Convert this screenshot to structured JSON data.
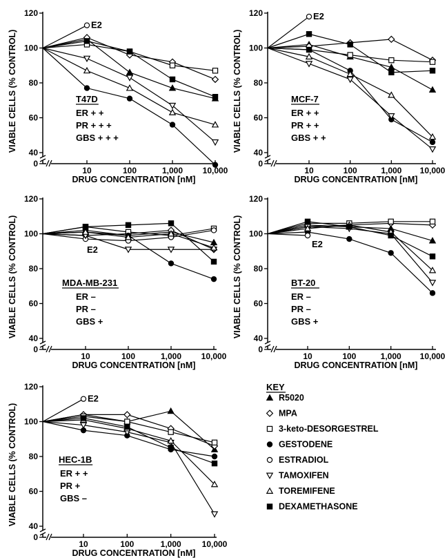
{
  "chart_data": [
    {
      "type": "line",
      "panel": "T47D",
      "cell_line": "T47D",
      "receptors": [
        "ER + +",
        "PR + + +",
        "GBS + + +"
      ],
      "xlabel": "DRUG CONCENTRATION [nM]",
      "ylabel": "VIABLE CELLS (% CONTROL)",
      "x_scale": "log",
      "x_ticks": [
        "10",
        "100",
        "1,000",
        "10,000"
      ],
      "y_ticks": [
        "0",
        "40",
        "60",
        "80",
        "100",
        "120"
      ],
      "ylim": [
        0,
        120
      ],
      "y_axis_break": [
        0,
        40
      ],
      "annotations": [
        {
          "text": "E2",
          "series": "ESTRADIOL"
        }
      ],
      "series": [
        {
          "name": "R5020",
          "marker": "filled-triangle",
          "x": [
            1,
            10,
            100,
            1000,
            10000
          ],
          "y": [
            100,
            105,
            86,
            77,
            71
          ]
        },
        {
          "name": "MPA",
          "marker": "open-diamond",
          "x": [
            1,
            10,
            100,
            1000,
            10000
          ],
          "y": [
            100,
            106,
            96,
            92,
            82
          ]
        },
        {
          "name": "3-keto-DESORGESTREL",
          "marker": "open-square",
          "x": [
            1,
            10,
            100,
            1000,
            10000
          ],
          "y": [
            100,
            102,
            98,
            90,
            87
          ]
        },
        {
          "name": "GESTODENE",
          "marker": "filled-circle",
          "x": [
            1,
            10,
            100,
            1000,
            10000
          ],
          "y": [
            100,
            77,
            71,
            56,
            33
          ]
        },
        {
          "name": "ESTRADIOL",
          "marker": "open-circle",
          "x": [
            1,
            10
          ],
          "y": [
            100,
            113
          ]
        },
        {
          "name": "TAMOXIFEN",
          "marker": "open-inverted-triangle",
          "x": [
            1,
            10,
            100,
            1000,
            10000
          ],
          "y": [
            100,
            94,
            83,
            67,
            46
          ]
        },
        {
          "name": "TOREMIFENE",
          "marker": "open-triangle",
          "x": [
            1,
            10,
            100,
            1000,
            10000
          ],
          "y": [
            100,
            87,
            77,
            63,
            56
          ]
        },
        {
          "name": "DEXAMETHASONE",
          "marker": "filled-square",
          "x": [
            1,
            10,
            100,
            1000,
            10000
          ],
          "y": [
            100,
            104,
            98,
            82,
            72
          ]
        }
      ]
    },
    {
      "type": "line",
      "panel": "MCF-7",
      "cell_line": "MCF-7",
      "receptors": [
        "ER + +",
        "PR + +",
        "GBS + +"
      ],
      "xlabel": "DRUG CONCENTRATION [nM]",
      "ylabel": "VIABLE CELLS (% CONTROL)",
      "x_scale": "log",
      "x_ticks": [
        "10",
        "100",
        "1,000",
        "10,000"
      ],
      "y_ticks": [
        "0",
        "40",
        "60",
        "80",
        "100",
        "120"
      ],
      "ylim": [
        0,
        120
      ],
      "y_axis_break": [
        0,
        40
      ],
      "annotations": [
        {
          "text": "E2",
          "series": "ESTRADIOL"
        }
      ],
      "series": [
        {
          "name": "R5020",
          "marker": "filled-triangle",
          "x": [
            1,
            10,
            100,
            1000,
            10000
          ],
          "y": [
            100,
            102,
            95,
            89,
            76
          ]
        },
        {
          "name": "MPA",
          "marker": "open-diamond",
          "x": [
            1,
            10,
            100,
            1000,
            10000
          ],
          "y": [
            100,
            101,
            103,
            105,
            93
          ]
        },
        {
          "name": "3-keto-DESORGESTREL",
          "marker": "open-square",
          "x": [
            1,
            10,
            100,
            1000,
            10000
          ],
          "y": [
            100,
            99,
            96,
            93,
            92
          ]
        },
        {
          "name": "GESTODENE",
          "marker": "filled-circle",
          "x": [
            1,
            10,
            100,
            1000,
            10000
          ],
          "y": [
            100,
            99,
            87,
            59,
            46
          ]
        },
        {
          "name": "ESTRADIOL",
          "marker": "open-circle",
          "x": [
            1,
            10
          ],
          "y": [
            100,
            118
          ]
        },
        {
          "name": "TAMOXIFEN",
          "marker": "open-inverted-triangle",
          "x": [
            1,
            10,
            100,
            1000,
            10000
          ],
          "y": [
            100,
            91,
            82,
            61,
            42
          ]
        },
        {
          "name": "TOREMIFENE",
          "marker": "open-triangle",
          "x": [
            1,
            10,
            100,
            1000,
            10000
          ],
          "y": [
            100,
            95,
            85,
            73,
            49
          ]
        },
        {
          "name": "DEXAMETHASONE",
          "marker": "filled-square",
          "x": [
            1,
            10,
            100,
            1000,
            10000
          ],
          "y": [
            100,
            108,
            102,
            86,
            87
          ]
        }
      ]
    },
    {
      "type": "line",
      "panel": "MDA-MB-231",
      "cell_line": "MDA-MB-231",
      "receptors": [
        "ER –",
        "PR –",
        "GBS +"
      ],
      "xlabel": "DRUG CONCENTRATION [nM]",
      "ylabel": "VIABLE CELLS (% CONTROL)",
      "x_scale": "log",
      "x_ticks": [
        "10",
        "100",
        "1,000",
        "10,000"
      ],
      "y_ticks": [
        "0",
        "40",
        "60",
        "80",
        "100",
        "120"
      ],
      "ylim": [
        0,
        120
      ],
      "y_axis_break": [
        0,
        40
      ],
      "annotations": [
        {
          "text": "E2",
          "series": "ESTRADIOL"
        }
      ],
      "series": [
        {
          "name": "R5020",
          "marker": "filled-triangle",
          "x": [
            1,
            10,
            100,
            1000,
            10000
          ],
          "y": [
            100,
            101,
            99,
            101,
            95
          ]
        },
        {
          "name": "MPA",
          "marker": "open-diamond",
          "x": [
            1,
            10,
            100,
            1000,
            10000
          ],
          "y": [
            100,
            99,
            100,
            102,
            91
          ]
        },
        {
          "name": "3-keto-DESORGESTREL",
          "marker": "open-square",
          "x": [
            1,
            10,
            100,
            1000,
            10000
          ],
          "y": [
            100,
            104,
            101,
            99,
            103
          ]
        },
        {
          "name": "GESTODENE",
          "marker": "filled-circle",
          "x": [
            1,
            10,
            100,
            1000,
            10000
          ],
          "y": [
            100,
            102,
            99,
            83,
            74
          ]
        },
        {
          "name": "ESTRADIOL",
          "marker": "open-circle",
          "x": [
            1,
            10,
            100,
            1000,
            10000
          ],
          "y": [
            100,
            97,
            96,
            98,
            102
          ]
        },
        {
          "name": "TAMOXIFEN",
          "marker": "open-inverted-triangle",
          "x": [
            1,
            10,
            100,
            1000,
            10000
          ],
          "y": [
            100,
            99,
            91,
            91,
            91
          ]
        },
        {
          "name": "TOREMIFENE",
          "marker": "open-triangle",
          "x": [
            1,
            10,
            100,
            1000,
            10000
          ],
          "y": [
            100,
            101,
            98,
            100,
            92
          ]
        },
        {
          "name": "DEXAMETHASONE",
          "marker": "filled-square",
          "x": [
            1,
            10,
            100,
            1000,
            10000
          ],
          "y": [
            100,
            104,
            105,
            106,
            84
          ]
        }
      ]
    },
    {
      "type": "line",
      "panel": "BT-20",
      "cell_line": "BT-20",
      "receptors": [
        "ER –",
        "PR –",
        "GBS +"
      ],
      "xlabel": "DRUG CONCENTRATION [nM]",
      "ylabel": "VIABLE CELLS (% CONTROL)",
      "x_scale": "log",
      "x_ticks": [
        "10",
        "100",
        "1,000",
        "10,000"
      ],
      "y_ticks": [
        "0",
        "40",
        "60",
        "80",
        "100",
        "120"
      ],
      "ylim": [
        0,
        120
      ],
      "y_axis_break": [
        0,
        40
      ],
      "annotations": [
        {
          "text": "E2",
          "series": "ESTRADIOL"
        }
      ],
      "series": [
        {
          "name": "R5020",
          "marker": "filled-triangle",
          "x": [
            1,
            10,
            100,
            1000,
            10000
          ],
          "y": [
            100,
            105,
            104,
            103,
            96
          ]
        },
        {
          "name": "MPA",
          "marker": "open-diamond",
          "x": [
            1,
            10,
            100,
            1000,
            10000
          ],
          "y": [
            100,
            104,
            105,
            106,
            105
          ]
        },
        {
          "name": "3-keto-DESORGESTREL",
          "marker": "open-square",
          "x": [
            1,
            10,
            100,
            1000,
            10000
          ],
          "y": [
            100,
            106,
            106,
            107,
            107
          ]
        },
        {
          "name": "GESTODENE",
          "marker": "filled-circle",
          "x": [
            1,
            10,
            100,
            1000,
            10000
          ],
          "y": [
            100,
            101,
            97,
            89,
            66
          ]
        },
        {
          "name": "ESTRADIOL",
          "marker": "open-circle",
          "x": [
            1,
            10
          ],
          "y": [
            100,
            99
          ]
        },
        {
          "name": "TAMOXIFEN",
          "marker": "open-inverted-triangle",
          "x": [
            1,
            10,
            100,
            1000,
            10000
          ],
          "y": [
            100,
            104,
            103,
            100,
            72
          ]
        },
        {
          "name": "TOREMIFENE",
          "marker": "open-triangle",
          "x": [
            1,
            10,
            100,
            1000,
            10000
          ],
          "y": [
            100,
            103,
            105,
            101,
            79
          ]
        },
        {
          "name": "DEXAMETHASONE",
          "marker": "filled-square",
          "x": [
            1,
            10,
            100,
            1000,
            10000
          ],
          "y": [
            100,
            107,
            104,
            99,
            87
          ]
        }
      ]
    },
    {
      "type": "line",
      "panel": "HEC-1B",
      "cell_line": "HEC-1B",
      "receptors": [
        "ER + +",
        "PR +",
        "GBS –"
      ],
      "xlabel": "DRUG CONCENTRATION [nM]",
      "ylabel": "VIABLE CELLS (% CONTROL)",
      "x_scale": "log",
      "x_ticks": [
        "10",
        "100",
        "1,000",
        "10,000"
      ],
      "y_ticks": [
        "0",
        "40",
        "60",
        "80",
        "100",
        "120"
      ],
      "ylim": [
        0,
        120
      ],
      "y_axis_break": [
        0,
        40
      ],
      "annotations": [
        {
          "text": "E2",
          "series": "ESTRADIOL"
        }
      ],
      "series": [
        {
          "name": "R5020",
          "marker": "filled-triangle",
          "x": [
            1,
            10,
            100,
            1000,
            10000
          ],
          "y": [
            100,
            104,
            100,
            106,
            84
          ]
        },
        {
          "name": "MPA",
          "marker": "open-diamond",
          "x": [
            1,
            10,
            100,
            1000,
            10000
          ],
          "y": [
            100,
            104,
            104,
            96,
            86
          ]
        },
        {
          "name": "3-keto-DESORGESTREL",
          "marker": "open-square",
          "x": [
            1,
            10,
            100,
            1000,
            10000
          ],
          "y": [
            100,
            103,
            100,
            94,
            88
          ]
        },
        {
          "name": "GESTODENE",
          "marker": "filled-circle",
          "x": [
            1,
            10,
            100,
            1000,
            10000
          ],
          "y": [
            100,
            95,
            92,
            84,
            80
          ]
        },
        {
          "name": "ESTRADIOL",
          "marker": "open-circle",
          "x": [
            1,
            10
          ],
          "y": [
            100,
            113
          ]
        },
        {
          "name": "TAMOXIFEN",
          "marker": "open-inverted-triangle",
          "x": [
            1,
            10,
            100,
            1000,
            10000
          ],
          "y": [
            100,
            98,
            94,
            88,
            47
          ]
        },
        {
          "name": "TOREMIFENE",
          "marker": "open-triangle",
          "x": [
            1,
            10,
            100,
            1000,
            10000
          ],
          "y": [
            100,
            101,
            96,
            89,
            64
          ]
        },
        {
          "name": "DEXAMETHASONE",
          "marker": "filled-square",
          "x": [
            1,
            10,
            100,
            1000,
            10000
          ],
          "y": [
            100,
            102,
            97,
            85,
            76
          ]
        }
      ]
    }
  ],
  "key": {
    "title": "KEY",
    "items": [
      {
        "label": "R5020",
        "marker": "filled-triangle"
      },
      {
        "label": "MPA",
        "marker": "open-diamond"
      },
      {
        "label": "3-keto-DESORGESTREL",
        "marker": "open-square"
      },
      {
        "label": "GESTODENE",
        "marker": "filled-circle"
      },
      {
        "label": "ESTRADIOL",
        "marker": "open-circle"
      },
      {
        "label": "TAMOXIFEN",
        "marker": "open-inverted-triangle"
      },
      {
        "label": "TOREMIFENE",
        "marker": "open-triangle"
      },
      {
        "label": "DEXAMETHASONE",
        "marker": "filled-square"
      }
    ]
  }
}
